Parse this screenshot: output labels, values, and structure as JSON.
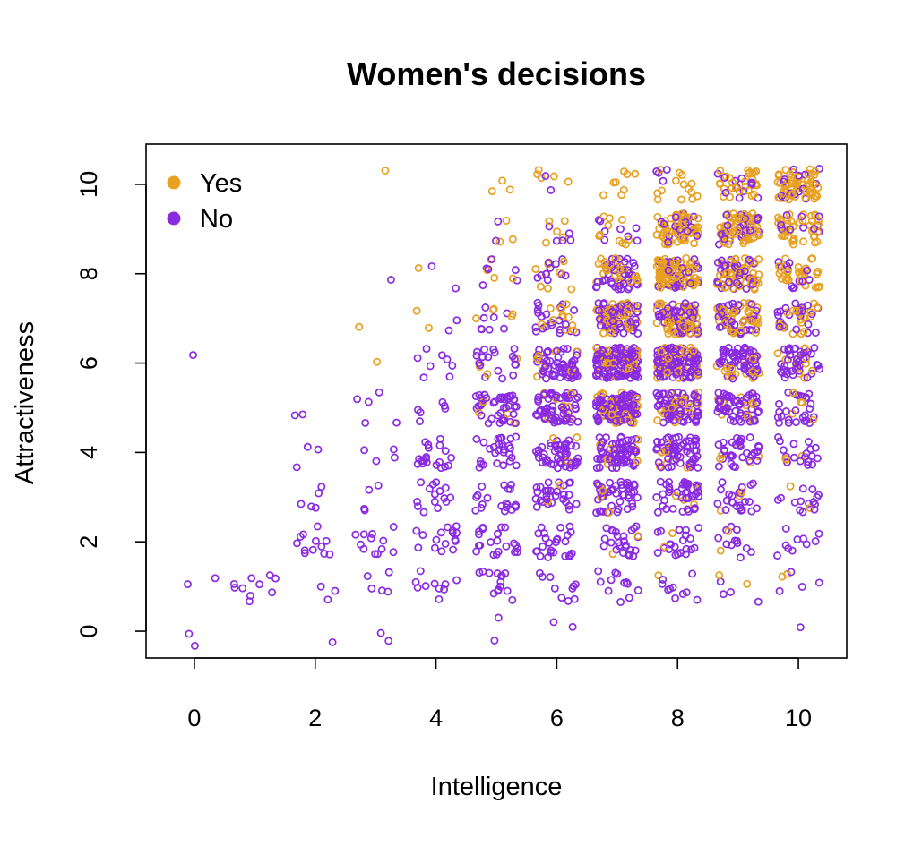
{
  "chart_data": {
    "type": "scatter",
    "title": "Women's decisions",
    "xlabel": "Intelligence",
    "ylabel": "Attractiveness",
    "xlim": [
      -0.8,
      10.8
    ],
    "ylim": [
      -0.6,
      10.9
    ],
    "x_ticks": [
      "0",
      "2",
      "4",
      "6",
      "8",
      "10"
    ],
    "y_ticks": [
      "0",
      "2",
      "4",
      "6",
      "8",
      "10"
    ],
    "grid": false,
    "jitter": 0.35,
    "legend": {
      "position": "top-left",
      "entries": [
        {
          "label": "Yes",
          "color": "#E8A020"
        },
        {
          "label": "No",
          "color": "#8A2BE2"
        }
      ]
    },
    "series": [
      {
        "name": "Yes",
        "color": "#E8A020",
        "marker": "open-circle",
        "cells": [
          [
            3,
            10,
            1
          ],
          [
            3,
            7,
            1
          ],
          [
            3,
            6,
            1
          ],
          [
            4,
            7,
            2
          ],
          [
            4,
            8,
            1
          ],
          [
            5,
            10,
            3
          ],
          [
            5,
            9,
            3
          ],
          [
            5,
            8,
            4
          ],
          [
            5,
            7,
            5
          ],
          [
            5,
            6,
            3
          ],
          [
            5,
            5,
            4
          ],
          [
            6,
            10,
            5
          ],
          [
            6,
            9,
            5
          ],
          [
            6,
            8,
            8
          ],
          [
            6,
            7,
            14
          ],
          [
            6,
            6,
            10
          ],
          [
            6,
            5,
            8
          ],
          [
            6,
            4,
            3
          ],
          [
            6,
            3,
            2
          ],
          [
            7,
            10,
            8
          ],
          [
            7,
            9,
            10
          ],
          [
            7,
            8,
            28
          ],
          [
            7,
            7,
            45
          ],
          [
            7,
            6,
            40
          ],
          [
            7,
            5,
            28
          ],
          [
            7,
            4,
            8
          ],
          [
            7,
            3,
            4
          ],
          [
            7,
            2,
            2
          ],
          [
            8,
            10,
            14
          ],
          [
            8,
            9,
            55
          ],
          [
            8,
            8,
            75
          ],
          [
            8,
            7,
            62
          ],
          [
            8,
            6,
            35
          ],
          [
            8,
            5,
            22
          ],
          [
            8,
            4,
            8
          ],
          [
            8,
            3,
            5
          ],
          [
            8,
            2,
            2
          ],
          [
            8,
            1,
            1
          ],
          [
            9,
            10,
            26
          ],
          [
            9,
            9,
            55
          ],
          [
            9,
            8,
            48
          ],
          [
            9,
            7,
            40
          ],
          [
            9,
            6,
            18
          ],
          [
            9,
            5,
            10
          ],
          [
            9,
            4,
            5
          ],
          [
            9,
            3,
            3
          ],
          [
            9,
            2,
            2
          ],
          [
            9,
            1,
            2
          ],
          [
            10,
            10,
            55
          ],
          [
            10,
            9,
            38
          ],
          [
            10,
            8,
            30
          ],
          [
            10,
            7,
            18
          ],
          [
            10,
            6,
            12
          ],
          [
            10,
            5,
            5
          ],
          [
            10,
            4,
            3
          ],
          [
            10,
            3,
            2
          ],
          [
            10,
            1,
            2
          ]
        ]
      },
      {
        "name": "No",
        "color": "#8A2BE2",
        "marker": "open-circle",
        "cells": [
          [
            0,
            6,
            1
          ],
          [
            0,
            1,
            2
          ],
          [
            0,
            0,
            2
          ],
          [
            1,
            1,
            10
          ],
          [
            2,
            5,
            2
          ],
          [
            2,
            4,
            3
          ],
          [
            2,
            3,
            5
          ],
          [
            2,
            2,
            12
          ],
          [
            2,
            1,
            3
          ],
          [
            2,
            0,
            1
          ],
          [
            3,
            8,
            1
          ],
          [
            3,
            5,
            5
          ],
          [
            3,
            4,
            4
          ],
          [
            3,
            3,
            4
          ],
          [
            3,
            2,
            12
          ],
          [
            3,
            1,
            5
          ],
          [
            3,
            0,
            2
          ],
          [
            4,
            8,
            2
          ],
          [
            4,
            7,
            2
          ],
          [
            4,
            6,
            8
          ],
          [
            4,
            5,
            6
          ],
          [
            4,
            4,
            20
          ],
          [
            4,
            3,
            15
          ],
          [
            4,
            2,
            16
          ],
          [
            4,
            1,
            10
          ],
          [
            5,
            9,
            2
          ],
          [
            5,
            8,
            6
          ],
          [
            5,
            7,
            8
          ],
          [
            5,
            6,
            18
          ],
          [
            5,
            5,
            42
          ],
          [
            5,
            4,
            28
          ],
          [
            5,
            3,
            20
          ],
          [
            5,
            2,
            22
          ],
          [
            5,
            1,
            14
          ],
          [
            5,
            0,
            2
          ],
          [
            6,
            10,
            2
          ],
          [
            6,
            9,
            5
          ],
          [
            6,
            8,
            10
          ],
          [
            6,
            7,
            22
          ],
          [
            6,
            6,
            60
          ],
          [
            6,
            5,
            65
          ],
          [
            6,
            4,
            50
          ],
          [
            6,
            3,
            30
          ],
          [
            6,
            2,
            26
          ],
          [
            6,
            1,
            10
          ],
          [
            6,
            0,
            2
          ],
          [
            7,
            9,
            8
          ],
          [
            7,
            8,
            38
          ],
          [
            7,
            7,
            55
          ],
          [
            7,
            6,
            120
          ],
          [
            7,
            5,
            90
          ],
          [
            7,
            4,
            70
          ],
          [
            7,
            3,
            46
          ],
          [
            7,
            2,
            26
          ],
          [
            7,
            1,
            12
          ],
          [
            8,
            10,
            4
          ],
          [
            8,
            9,
            18
          ],
          [
            8,
            8,
            30
          ],
          [
            8,
            7,
            45
          ],
          [
            8,
            6,
            100
          ],
          [
            8,
            5,
            70
          ],
          [
            8,
            4,
            60
          ],
          [
            8,
            3,
            40
          ],
          [
            8,
            2,
            22
          ],
          [
            8,
            1,
            10
          ],
          [
            9,
            10,
            12
          ],
          [
            9,
            9,
            25
          ],
          [
            9,
            8,
            30
          ],
          [
            9,
            7,
            32
          ],
          [
            9,
            6,
            60
          ],
          [
            9,
            5,
            50
          ],
          [
            9,
            4,
            32
          ],
          [
            9,
            3,
            24
          ],
          [
            9,
            2,
            12
          ],
          [
            9,
            1,
            4
          ],
          [
            10,
            10,
            14
          ],
          [
            10,
            9,
            10
          ],
          [
            10,
            8,
            12
          ],
          [
            10,
            7,
            22
          ],
          [
            10,
            6,
            38
          ],
          [
            10,
            5,
            26
          ],
          [
            10,
            4,
            18
          ],
          [
            10,
            3,
            14
          ],
          [
            10,
            2,
            10
          ],
          [
            10,
            1,
            4
          ],
          [
            10,
            0,
            1
          ]
        ]
      }
    ]
  }
}
